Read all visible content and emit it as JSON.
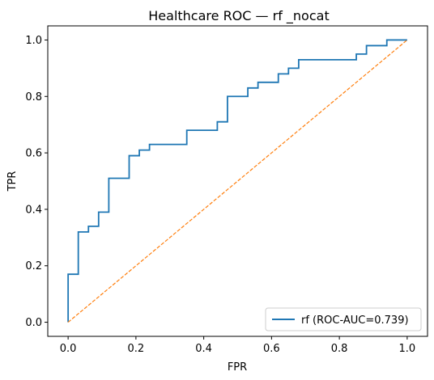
{
  "chart_data": {
    "type": "line",
    "title": "Healthcare ROC — rf _nocat",
    "xlabel": "FPR",
    "ylabel": "TPR",
    "xlim": [
      -0.06,
      1.06
    ],
    "ylim": [
      -0.05,
      1.05
    ],
    "x_ticks": [
      "0.0",
      "0.2",
      "0.4",
      "0.6",
      "0.8",
      "1.0"
    ],
    "y_ticks": [
      "0.0",
      "0.2",
      "0.4",
      "0.6",
      "0.8",
      "1.0"
    ],
    "grid": false,
    "legend_position": "bottom-right",
    "series": [
      {
        "name": "rf (ROC-AUC=0.739)",
        "color": "#1f77b4",
        "style": "solid",
        "x": [
          0.0,
          0.0,
          0.03,
          0.03,
          0.06,
          0.06,
          0.09,
          0.09,
          0.12,
          0.12,
          0.18,
          0.18,
          0.21,
          0.21,
          0.24,
          0.24,
          0.35,
          0.35,
          0.44,
          0.44,
          0.47,
          0.47,
          0.53,
          0.53,
          0.56,
          0.56,
          0.62,
          0.62,
          0.65,
          0.65,
          0.68,
          0.68,
          0.85,
          0.85,
          0.88,
          0.88,
          0.94,
          0.94,
          1.0
        ],
        "y": [
          0.0,
          0.17,
          0.17,
          0.32,
          0.32,
          0.34,
          0.34,
          0.39,
          0.39,
          0.51,
          0.51,
          0.59,
          0.59,
          0.61,
          0.61,
          0.63,
          0.63,
          0.68,
          0.68,
          0.71,
          0.71,
          0.8,
          0.8,
          0.83,
          0.83,
          0.85,
          0.85,
          0.88,
          0.88,
          0.9,
          0.9,
          0.93,
          0.93,
          0.95,
          0.95,
          0.98,
          0.98,
          1.0,
          1.0
        ]
      },
      {
        "color": "#ff7f0e",
        "style": "dashed",
        "x": [
          0.0,
          1.0
        ],
        "y": [
          0.0,
          1.0
        ]
      }
    ]
  }
}
